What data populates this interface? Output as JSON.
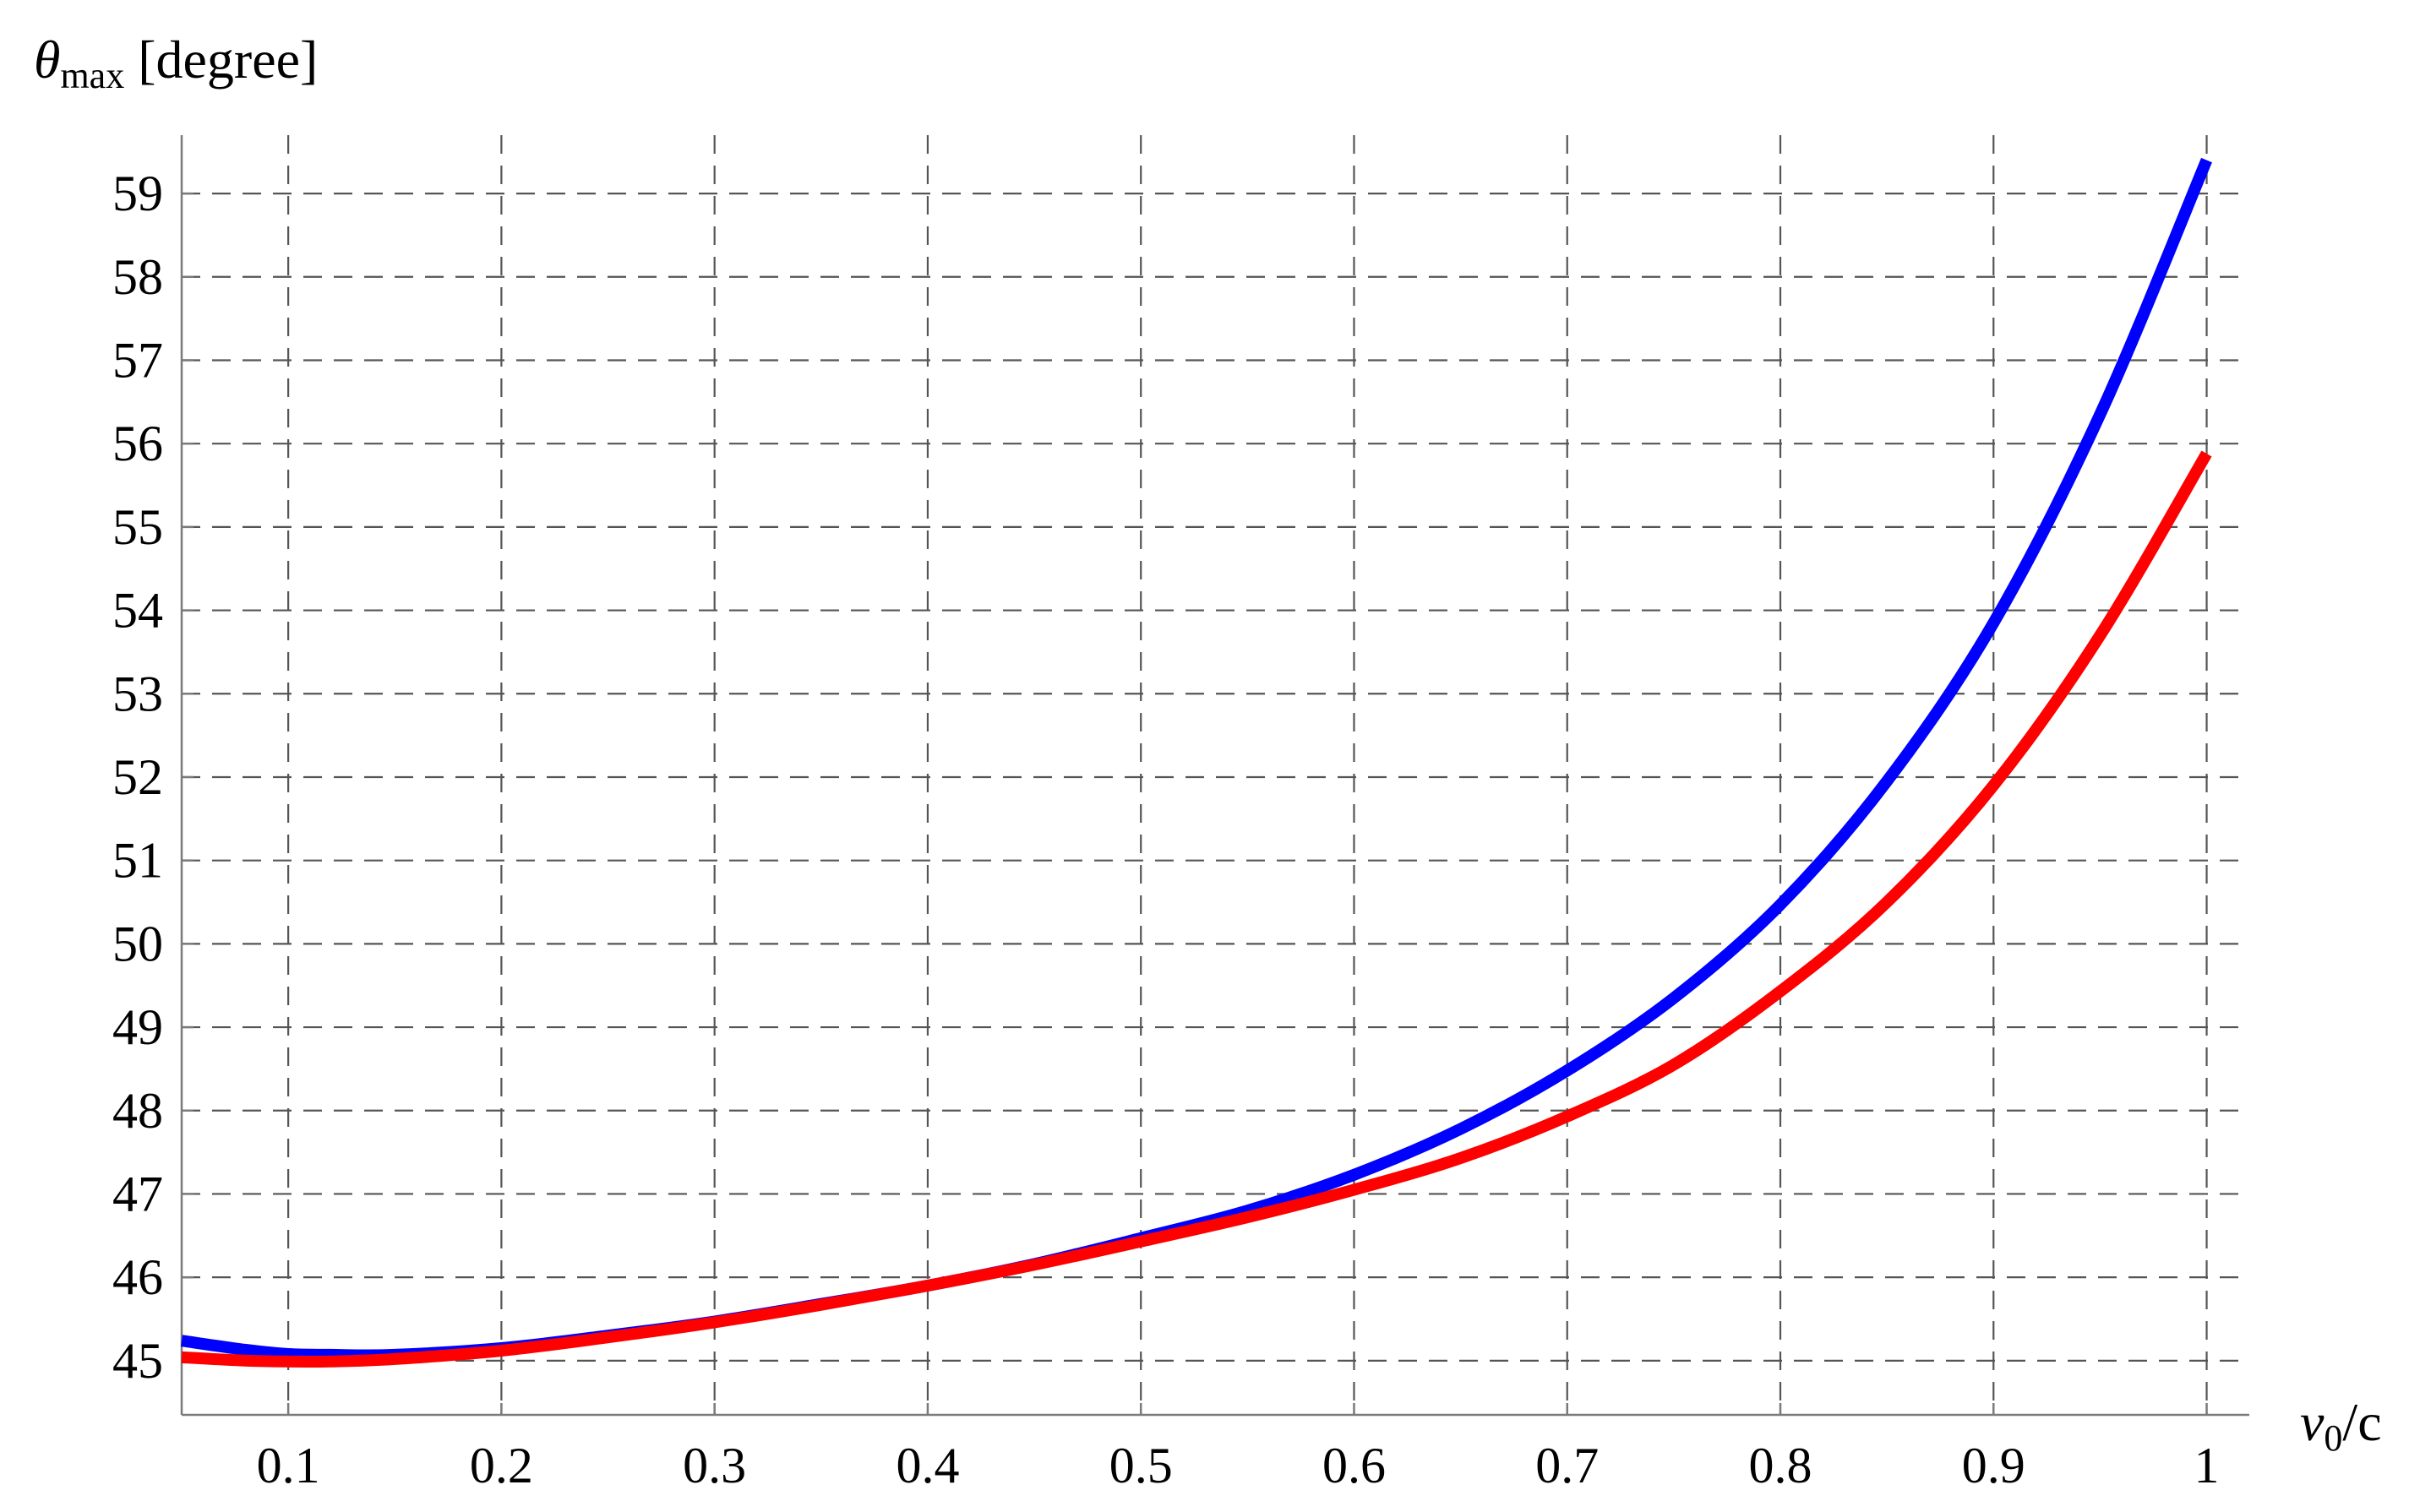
{
  "chart_data": {
    "type": "line",
    "ylabel": {
      "symbol": "θ",
      "subscript": "max",
      "unit": "[degree]"
    },
    "xlabel": {
      "symbol": "v",
      "subscript": "0",
      "suffix": "/c"
    },
    "xlim": [
      0.05,
      1.02
    ],
    "ylim": [
      44.35,
      59.7
    ],
    "x_ticks": [
      "0.1",
      "0.2",
      "0.3",
      "0.4",
      "0.5",
      "0.6",
      "0.7",
      "0.8",
      "0.9",
      "1"
    ],
    "y_ticks": [
      "45",
      "46",
      "47",
      "48",
      "49",
      "50",
      "51",
      "52",
      "53",
      "54",
      "55",
      "56",
      "57",
      "58",
      "59"
    ],
    "grid": true,
    "grid_style": "dashed",
    "series": [
      {
        "color": "#0000ff",
        "x": [
          0.05,
          0.08,
          0.1,
          0.12,
          0.15,
          0.2,
          0.25,
          0.3,
          0.35,
          0.4,
          0.45,
          0.5,
          0.55,
          0.6,
          0.65,
          0.7,
          0.75,
          0.8,
          0.85,
          0.9,
          0.95,
          1.0
        ],
        "values": [
          45.24,
          45.13,
          45.08,
          45.07,
          45.07,
          45.15,
          45.3,
          45.47,
          45.68,
          45.9,
          46.16,
          46.47,
          46.8,
          47.23,
          47.78,
          48.48,
          49.35,
          50.47,
          51.95,
          53.85,
          56.35,
          59.4
        ]
      },
      {
        "color": "#ff0000",
        "x": [
          0.05,
          0.08,
          0.1,
          0.12,
          0.15,
          0.2,
          0.25,
          0.3,
          0.35,
          0.4,
          0.45,
          0.5,
          0.55,
          0.6,
          0.65,
          0.7,
          0.75,
          0.8,
          0.85,
          0.9,
          0.95,
          1.0
        ],
        "values": [
          45.04,
          45.0,
          44.99,
          44.99,
          45.02,
          45.12,
          45.28,
          45.46,
          45.67,
          45.9,
          46.15,
          46.43,
          46.72,
          47.05,
          47.43,
          47.93,
          48.55,
          49.43,
          50.5,
          51.9,
          53.7,
          55.88
        ]
      }
    ]
  }
}
